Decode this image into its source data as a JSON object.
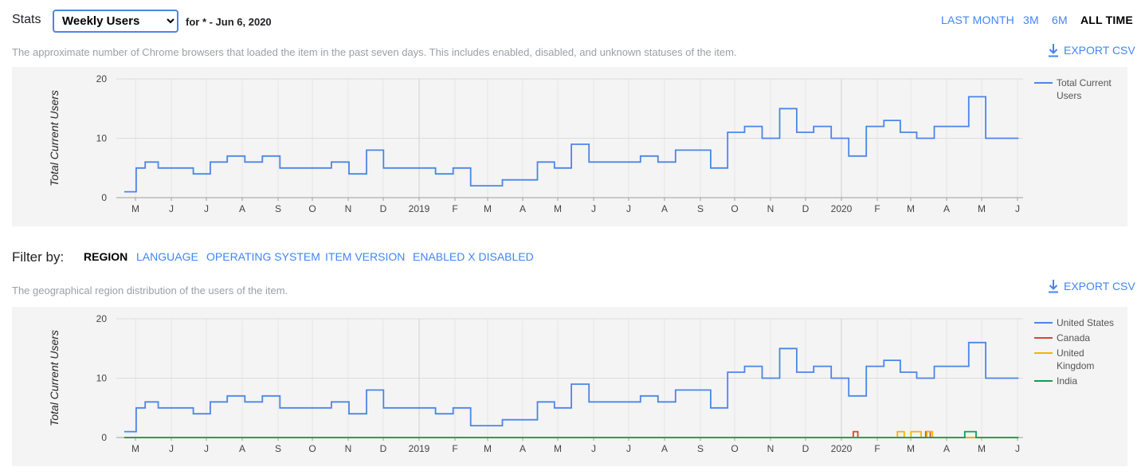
{
  "header": {
    "stats_label": "Stats",
    "metric_select": {
      "selected": "Weekly Users",
      "options": [
        "Weekly Users"
      ]
    },
    "date_range": "for * - Jun 6, 2020",
    "range_buttons": [
      {
        "label": "LAST MONTH",
        "active": false
      },
      {
        "label": "3M",
        "active": false
      },
      {
        "label": "6M",
        "active": false
      },
      {
        "label": "ALL TIME",
        "active": true
      }
    ]
  },
  "users_section": {
    "description": "The approximate number of Chrome browsers that loaded the item in the past seven days. This includes enabled, disabled, and unknown statuses of the item.",
    "export_label": "EXPORT CSV"
  },
  "filter": {
    "label": "Filter by:",
    "tabs": [
      {
        "label": "REGION",
        "active": true
      },
      {
        "label": "LANGUAGE",
        "active": false
      },
      {
        "label": "OPERATING SYSTEM",
        "active": false
      },
      {
        "label": "ITEM VERSION",
        "active": false
      },
      {
        "label": "ENABLED X DISABLED",
        "active": false
      }
    ]
  },
  "region_section": {
    "description": "The geographical region distribution of the users of the item.",
    "export_label": "EXPORT CSV"
  },
  "colors": {
    "accent": "#4285f4",
    "us": "#4a86e8",
    "canada": "#db4437",
    "uk": "#f4b400",
    "india": "#0f9d58"
  },
  "chart_data": [
    {
      "type": "line",
      "ylabel": "Total Current Users",
      "ylim": [
        0,
        20
      ],
      "yticks": [
        0,
        10,
        20
      ],
      "xticks": [
        "M",
        "J",
        "J",
        "A",
        "S",
        "O",
        "N",
        "D",
        "2019",
        "F",
        "M",
        "A",
        "M",
        "J",
        "J",
        "A",
        "S",
        "O",
        "N",
        "D",
        "2020",
        "F",
        "M",
        "A",
        "M",
        "J"
      ],
      "legend_position": "right",
      "series": [
        {
          "name": "Total Current Users",
          "color": "#4a86e8",
          "x": [
            "2018-04-08",
            "2018-04-15",
            "2018-04-22",
            "2018-05-01",
            "2018-05-15",
            "2018-06-01",
            "2018-06-15",
            "2018-07-01",
            "2018-07-15",
            "2018-08-01",
            "2018-08-15",
            "2018-09-01",
            "2018-09-15",
            "2018-10-01",
            "2018-10-15",
            "2018-11-01",
            "2018-11-15",
            "2018-12-01",
            "2018-12-15",
            "2019-01-01",
            "2019-01-15",
            "2019-02-01",
            "2019-02-15",
            "2019-03-01",
            "2019-03-15",
            "2019-04-01",
            "2019-04-15",
            "2019-05-01",
            "2019-05-15",
            "2019-06-01",
            "2019-06-15",
            "2019-07-01",
            "2019-07-15",
            "2019-08-01",
            "2019-08-15",
            "2019-09-01",
            "2019-09-15",
            "2019-10-01",
            "2019-10-15",
            "2019-11-01",
            "2019-11-15",
            "2019-12-01",
            "2019-12-15",
            "2020-01-01",
            "2020-01-15",
            "2020-02-01",
            "2020-02-15",
            "2020-03-01",
            "2020-03-15",
            "2020-04-01",
            "2020-04-15",
            "2020-05-01",
            "2020-05-15",
            "2020-06-06"
          ],
          "y": [
            1,
            1,
            5,
            6,
            5,
            5,
            4,
            6,
            7,
            6,
            7,
            5,
            5,
            5,
            6,
            4,
            8,
            5,
            5,
            5,
            4,
            5,
            2,
            2,
            3,
            3,
            6,
            5,
            9,
            6,
            6,
            6,
            7,
            6,
            8,
            8,
            5,
            11,
            12,
            10,
            15,
            11,
            12,
            10,
            7,
            12,
            13,
            11,
            10,
            12,
            12,
            17,
            10,
            10
          ]
        }
      ]
    },
    {
      "type": "line",
      "ylabel": "Total Current Users",
      "ylim": [
        0,
        20
      ],
      "yticks": [
        0,
        10,
        20
      ],
      "xticks": [
        "M",
        "J",
        "J",
        "A",
        "S",
        "O",
        "N",
        "D",
        "2019",
        "F",
        "M",
        "A",
        "M",
        "J",
        "J",
        "A",
        "S",
        "O",
        "N",
        "D",
        "2020",
        "F",
        "M",
        "A",
        "M",
        "J"
      ],
      "legend_position": "right",
      "series": [
        {
          "name": "United States",
          "color": "#4a86e8",
          "x": [
            "2018-04-08",
            "2018-04-15",
            "2018-04-22",
            "2018-05-01",
            "2018-05-15",
            "2018-06-01",
            "2018-06-15",
            "2018-07-01",
            "2018-07-15",
            "2018-08-01",
            "2018-08-15",
            "2018-09-01",
            "2018-09-15",
            "2018-10-01",
            "2018-10-15",
            "2018-11-01",
            "2018-11-15",
            "2018-12-01",
            "2018-12-15",
            "2019-01-01",
            "2019-01-15",
            "2019-02-01",
            "2019-02-15",
            "2019-03-01",
            "2019-03-15",
            "2019-04-01",
            "2019-04-15",
            "2019-05-01",
            "2019-05-15",
            "2019-06-01",
            "2019-06-15",
            "2019-07-01",
            "2019-07-15",
            "2019-08-01",
            "2019-08-15",
            "2019-09-01",
            "2019-09-15",
            "2019-10-01",
            "2019-10-15",
            "2019-11-01",
            "2019-11-15",
            "2019-12-01",
            "2019-12-15",
            "2020-01-01",
            "2020-01-15",
            "2020-02-01",
            "2020-02-15",
            "2020-03-01",
            "2020-03-15",
            "2020-04-01",
            "2020-04-15",
            "2020-05-01",
            "2020-05-15",
            "2020-06-06"
          ],
          "y": [
            1,
            1,
            5,
            6,
            5,
            5,
            4,
            6,
            7,
            6,
            7,
            5,
            5,
            5,
            6,
            4,
            8,
            5,
            5,
            5,
            4,
            5,
            2,
            2,
            3,
            3,
            6,
            5,
            9,
            6,
            6,
            6,
            7,
            6,
            8,
            8,
            5,
            11,
            12,
            10,
            15,
            11,
            12,
            10,
            7,
            12,
            13,
            11,
            10,
            12,
            12,
            16,
            10,
            10
          ]
        },
        {
          "name": "Canada",
          "color": "#db4437",
          "x": [
            "2018-04-08",
            "2020-01-10",
            "2020-01-14",
            "2020-01-18",
            "2020-03-14",
            "2020-03-18",
            "2020-03-22",
            "2020-06-06"
          ],
          "y": [
            0,
            0,
            1,
            0,
            0,
            1,
            0,
            0
          ]
        },
        {
          "name": "United Kingdom",
          "color": "#f4b400",
          "x": [
            "2018-04-08",
            "2020-02-18",
            "2020-02-22",
            "2020-03-01",
            "2020-03-05",
            "2020-03-10",
            "2020-03-14",
            "2020-03-20",
            "2020-03-24",
            "2020-06-06"
          ],
          "y": [
            0,
            0,
            1,
            0,
            1,
            1,
            0,
            1,
            0,
            0
          ]
        },
        {
          "name": "India",
          "color": "#0f9d58",
          "x": [
            "2018-04-08",
            "2020-04-18",
            "2020-04-21",
            "2020-04-28",
            "2020-05-01",
            "2020-06-06"
          ],
          "y": [
            0,
            0,
            1,
            1,
            0,
            0
          ]
        }
      ]
    }
  ]
}
